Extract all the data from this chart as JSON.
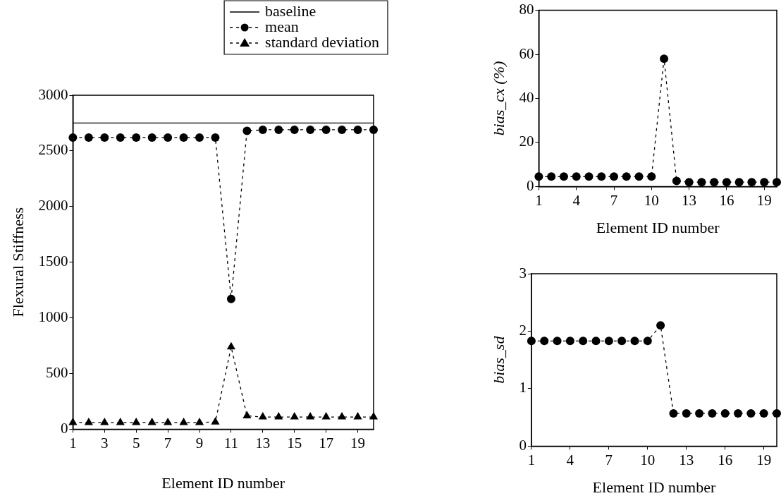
{
  "chart_data": [
    {
      "type": "line",
      "xlabel": "Element ID number",
      "ylabel": "Flexural Stiffness",
      "x": [
        1,
        2,
        3,
        4,
        5,
        6,
        7,
        8,
        9,
        10,
        11,
        12,
        13,
        14,
        15,
        16,
        17,
        18,
        19,
        20
      ],
      "xlim": [
        1,
        20
      ],
      "xticks": [
        1,
        3,
        5,
        7,
        9,
        11,
        13,
        15,
        17,
        19
      ],
      "ylim": [
        0,
        3000
      ],
      "yticks": [
        0,
        500,
        1000,
        1500,
        2000,
        2500,
        3000
      ],
      "legend": "top right",
      "series": [
        {
          "name": "baseline",
          "color": "#000000",
          "marker": "none",
          "line_style": "solid",
          "values": [
            2750,
            2750,
            2750,
            2750,
            2750,
            2750,
            2750,
            2750,
            2750,
            2750,
            2750,
            2750,
            2750,
            2750,
            2750,
            2750,
            2750,
            2750,
            2750,
            2750
          ]
        },
        {
          "name": "mean",
          "color": "#000000",
          "marker": "circle",
          "line_style": "dashed",
          "values": [
            2620,
            2620,
            2620,
            2620,
            2620,
            2620,
            2620,
            2620,
            2620,
            2620,
            1170,
            2680,
            2690,
            2690,
            2690,
            2690,
            2690,
            2690,
            2690,
            2690
          ]
        },
        {
          "name": "standard deviation",
          "color": "#000000",
          "marker": "triangle",
          "line_style": "dashed",
          "values": [
            60,
            60,
            60,
            60,
            60,
            60,
            60,
            60,
            60,
            65,
            740,
            120,
            110,
            110,
            110,
            110,
            110,
            110,
            110,
            110
          ]
        }
      ]
    },
    {
      "type": "line",
      "xlabel": "Element ID number",
      "ylabel": "bias_cx (%)",
      "x": [
        1,
        2,
        3,
        4,
        5,
        6,
        7,
        8,
        9,
        10,
        11,
        12,
        13,
        14,
        15,
        16,
        17,
        18,
        19,
        20
      ],
      "xlim": [
        1,
        20
      ],
      "xticks": [
        1,
        4,
        7,
        10,
        13,
        16,
        19
      ],
      "ylim": [
        0,
        80
      ],
      "yticks": [
        0,
        20,
        40,
        60,
        80
      ],
      "marker": "circle",
      "line_style": "dashed",
      "series": [
        {
          "color": "#000000",
          "values": [
            4.5,
            4.5,
            4.5,
            4.5,
            4.5,
            4.5,
            4.5,
            4.5,
            4.5,
            4.5,
            58,
            2.5,
            2,
            2,
            2,
            2,
            2,
            2,
            2,
            2
          ]
        }
      ]
    },
    {
      "type": "line",
      "xlabel": "Element ID number",
      "ylabel": "bias_sd",
      "x": [
        1,
        2,
        3,
        4,
        5,
        6,
        7,
        8,
        9,
        10,
        11,
        12,
        13,
        14,
        15,
        16,
        17,
        18,
        19,
        20
      ],
      "xlim": [
        1,
        20
      ],
      "xticks": [
        1,
        4,
        7,
        10,
        13,
        16,
        19
      ],
      "ylim": [
        0,
        3
      ],
      "yticks": [
        0,
        1,
        2,
        3
      ],
      "marker": "circle",
      "line_style": "dashed",
      "series": [
        {
          "color": "#000000",
          "values": [
            1.83,
            1.83,
            1.83,
            1.83,
            1.83,
            1.83,
            1.83,
            1.83,
            1.83,
            1.83,
            2.1,
            0.57,
            0.57,
            0.57,
            0.57,
            0.57,
            0.57,
            0.57,
            0.57,
            0.57
          ]
        }
      ]
    }
  ]
}
